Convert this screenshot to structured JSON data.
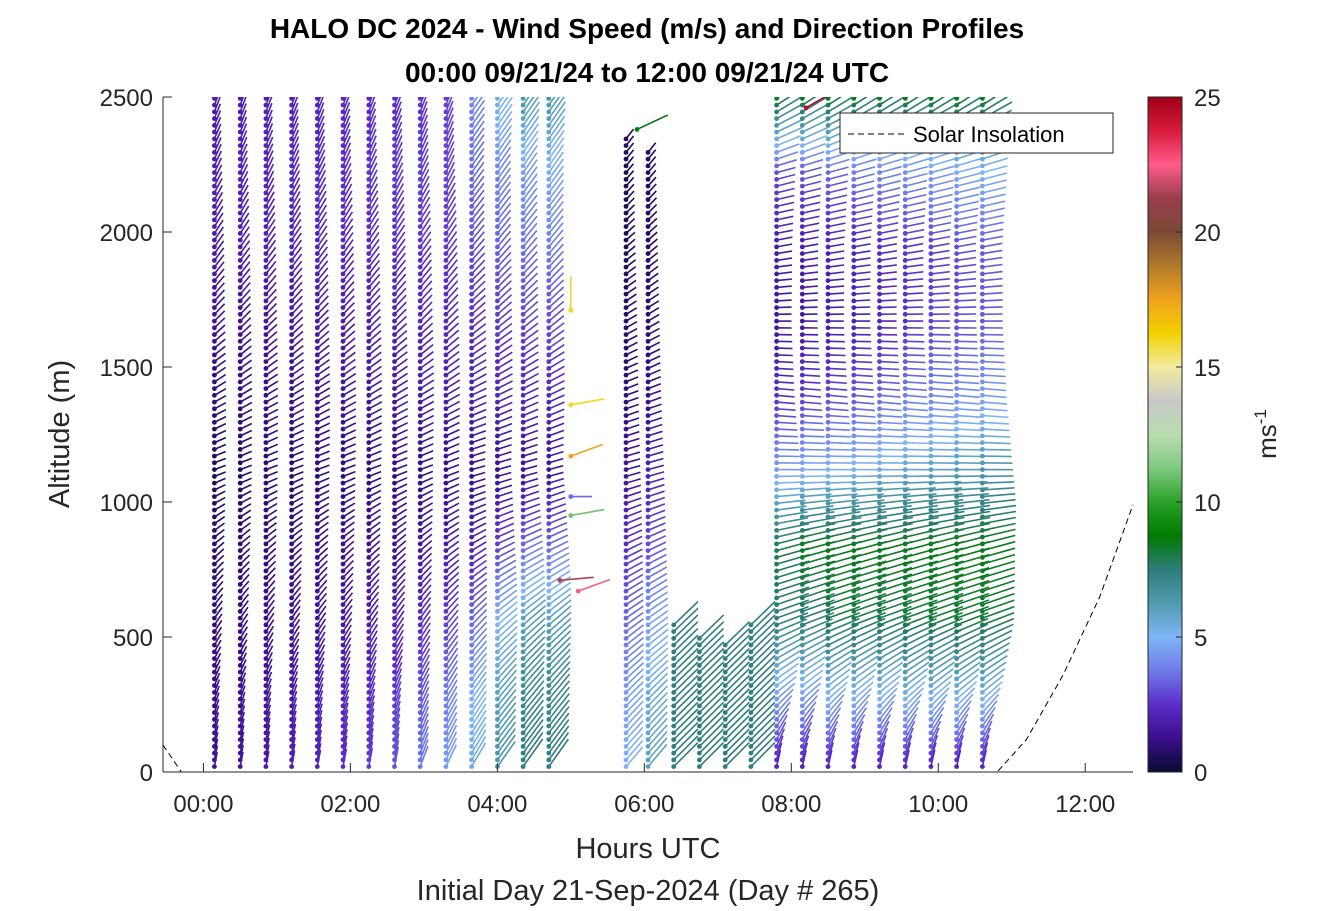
{
  "chart_data": {
    "type": "quiver",
    "title": "HALO DC 2024 - Wind Speed (m/s) and Direction Profiles",
    "subtitle": "00:00 09/21/24 to 12:00 09/21/24  UTC",
    "xlabel": "Hours UTC",
    "xlabel2": "Initial Day 21-Sep-2024 (Day # 265)",
    "ylabel": "Altitude (m)",
    "xlim": [
      -0.55,
      12.65
    ],
    "ylim": [
      0,
      2500
    ],
    "x_ticks": [
      {
        "value": 0,
        "label": "00:00"
      },
      {
        "value": 2,
        "label": "02:00"
      },
      {
        "value": 4,
        "label": "04:00"
      },
      {
        "value": 6,
        "label": "06:00"
      },
      {
        "value": 8,
        "label": "08:00"
      },
      {
        "value": 10,
        "label": "10:00"
      },
      {
        "value": 12,
        "label": "12:00"
      }
    ],
    "y_ticks": [
      0,
      500,
      1000,
      1500,
      2000,
      2500
    ],
    "colorbar": {
      "label_base": "ms",
      "label_sup": "-1",
      "range": [
        0,
        25
      ],
      "ticks": [
        0,
        5,
        10,
        15,
        20,
        25
      ],
      "colors": [
        "#0a0a33",
        "#3b0f8c",
        "#5a2dc8",
        "#6f7be8",
        "#7fb5f5",
        "#4f9bb0",
        "#2e7d7a",
        "#007a00",
        "#2aa12a",
        "#7fc97f",
        "#b9ddb0",
        "#c8c8c8",
        "#f2eb9e",
        "#f2d100",
        "#f0a21e",
        "#b07a2a",
        "#7a4a35",
        "#9a3d4d",
        "#ff5c8a",
        "#d81b3c",
        "#9e0016"
      ]
    },
    "legend": {
      "position": "top-right",
      "entries": [
        {
          "label": "Solar Insolation",
          "style": "dashed",
          "color": "#000000"
        }
      ]
    },
    "series": [
      {
        "name": "Solar Insolation",
        "x": [
          -0.55,
          -0.3,
          0,
          10.8,
          11.2,
          11.7,
          12.2,
          12.65
        ],
        "y": [
          100,
          0,
          0,
          0,
          120,
          360,
          650,
          990
        ]
      }
    ],
    "wind_profiles": [
      {
        "t": 0.15,
        "speed": [
          1.5,
          1.2,
          1.0,
          0.8,
          0.6,
          1.0,
          1.4,
          1.8,
          2.0,
          1.8
        ],
        "dir": [
          190,
          200,
          215,
          230,
          250,
          240,
          225,
          215,
          205,
          200
        ],
        "top": 2500
      },
      {
        "t": 0.5,
        "speed": [
          1.6,
          1.3,
          1.1,
          0.9,
          0.7,
          1.1,
          1.5,
          1.9,
          2.1,
          1.9
        ],
        "dir": [
          190,
          200,
          215,
          230,
          250,
          240,
          225,
          215,
          205,
          200
        ],
        "top": 2500
      },
      {
        "t": 0.85,
        "speed": [
          1.8,
          1.5,
          1.3,
          1.0,
          0.8,
          1.2,
          1.6,
          2.0,
          2.2,
          2.0
        ],
        "dir": [
          190,
          200,
          215,
          230,
          250,
          240,
          225,
          215,
          205,
          200
        ],
        "top": 2500
      },
      {
        "t": 1.2,
        "speed": [
          2.0,
          1.7,
          1.4,
          1.1,
          0.8,
          1.3,
          1.7,
          2.1,
          2.3,
          2.1
        ],
        "dir": [
          190,
          200,
          215,
          230,
          250,
          240,
          225,
          215,
          205,
          200
        ],
        "top": 2500
      },
      {
        "t": 1.55,
        "speed": [
          2.2,
          1.9,
          1.5,
          1.2,
          0.9,
          1.4,
          1.8,
          2.2,
          2.4,
          2.2
        ],
        "dir": [
          190,
          200,
          215,
          230,
          250,
          240,
          225,
          215,
          205,
          200
        ],
        "top": 2500
      },
      {
        "t": 1.9,
        "speed": [
          2.5,
          2.1,
          1.7,
          1.3,
          1.0,
          1.5,
          1.9,
          2.3,
          2.5,
          2.3
        ],
        "dir": [
          190,
          200,
          215,
          230,
          250,
          240,
          225,
          215,
          205,
          200
        ],
        "top": 2500
      },
      {
        "t": 2.25,
        "speed": [
          2.8,
          2.4,
          1.9,
          1.4,
          1.0,
          1.6,
          2.0,
          2.4,
          2.6,
          2.4
        ],
        "dir": [
          190,
          200,
          215,
          230,
          250,
          240,
          225,
          215,
          205,
          200
        ],
        "top": 2500
      },
      {
        "t": 2.6,
        "speed": [
          3.2,
          2.7,
          2.1,
          1.5,
          1.1,
          1.7,
          2.1,
          2.5,
          2.7,
          2.5
        ],
        "dir": [
          190,
          200,
          215,
          230,
          250,
          240,
          225,
          215,
          205,
          200
        ],
        "top": 2500
      },
      {
        "t": 2.95,
        "speed": [
          3.8,
          3.2,
          2.4,
          1.6,
          1.1,
          1.8,
          2.2,
          2.6,
          2.8,
          2.6
        ],
        "dir": [
          200,
          205,
          215,
          230,
          250,
          240,
          225,
          215,
          205,
          200
        ],
        "top": 2500
      },
      {
        "t": 3.3,
        "speed": [
          4.5,
          3.8,
          2.8,
          1.8,
          1.2,
          1.9,
          2.3,
          2.7,
          2.9,
          2.8
        ],
        "dir": [
          205,
          210,
          220,
          235,
          250,
          240,
          225,
          215,
          205,
          200
        ],
        "top": 2500
      },
      {
        "t": 3.65,
        "speed": [
          5.5,
          4.8,
          3.5,
          2.1,
          1.2,
          2.0,
          2.5,
          3.0,
          3.5,
          4.0
        ],
        "dir": [
          210,
          215,
          225,
          240,
          255,
          245,
          230,
          220,
          215,
          215
        ],
        "top": 2500
      },
      {
        "t": 4.0,
        "speed": [
          6.5,
          6.0,
          5.0,
          2.8,
          1.3,
          2.1,
          2.7,
          3.3,
          4.0,
          5.5
        ],
        "dir": [
          215,
          220,
          230,
          245,
          255,
          245,
          230,
          220,
          215,
          215
        ],
        "top": 2500
      },
      {
        "t": 4.35,
        "speed": [
          7.5,
          7.0,
          6.0,
          3.5,
          1.4,
          2.2,
          2.9,
          3.6,
          4.5,
          6.5
        ],
        "dir": [
          215,
          220,
          230,
          245,
          255,
          245,
          230,
          220,
          215,
          215
        ],
        "top": 2500
      },
      {
        "t": 4.7,
        "speed": [
          7.5,
          7.0,
          6.0,
          3.5,
          1.5,
          2.3,
          3.0,
          3.8,
          4.8,
          6.5
        ],
        "dir": [
          215,
          220,
          230,
          245,
          255,
          245,
          230,
          220,
          215,
          215
        ],
        "top": 2500
      },
      {
        "t": 5.75,
        "speed": [
          5.0,
          4.5,
          3.5,
          2.5,
          1.5,
          1.0,
          0.8,
          0.6,
          0.5,
          1.0
        ],
        "dir": [
          220,
          225,
          235,
          245,
          255,
          250,
          240,
          230,
          220,
          215
        ],
        "top": 2350
      },
      {
        "t": 6.05,
        "speed": [
          6.0,
          5.5,
          4.5,
          3.0,
          2.0,
          1.2,
          0.9,
          0.7,
          0.6,
          1.0
        ],
        "dir": [
          220,
          225,
          235,
          245,
          255,
          250,
          240,
          230,
          220,
          215
        ],
        "top": 2300
      },
      {
        "t": 6.4,
        "speed": [
          7.5,
          7.0
        ],
        "dir": [
          225,
          230
        ],
        "top": 550
      },
      {
        "t": 6.75,
        "speed": [
          7.5,
          7.0
        ],
        "dir": [
          225,
          230
        ],
        "top": 500
      },
      {
        "t": 7.1,
        "speed": [
          7.5,
          7.0
        ],
        "dir": [
          225,
          230
        ],
        "top": 480
      },
      {
        "t": 7.45,
        "speed": [
          7.5,
          7.0
        ],
        "dir": [
          225,
          230
        ],
        "top": 560
      },
      {
        "t": 7.8,
        "speed": [
          2.0,
          4.5,
          7.5,
          8.0,
          4.5,
          2.5,
          1.5,
          1.8,
          3.0,
          8.5
        ],
        "dir": [
          190,
          230,
          250,
          255,
          270,
          275,
          270,
          260,
          255,
          235
        ],
        "top": 2500
      },
      {
        "t": 8.15,
        "speed": [
          2.0,
          4.5,
          7.5,
          8.5,
          4.8,
          2.8,
          1.6,
          1.9,
          3.2,
          8.5
        ],
        "dir": [
          190,
          230,
          250,
          255,
          270,
          275,
          270,
          260,
          255,
          235
        ],
        "top": 2500
      },
      {
        "t": 8.5,
        "speed": [
          2.0,
          5.0,
          8.0,
          8.5,
          5.0,
          3.0,
          1.8,
          2.0,
          3.5,
          8.5
        ],
        "dir": [
          190,
          230,
          250,
          255,
          270,
          275,
          270,
          260,
          255,
          235
        ],
        "top": 2500
      },
      {
        "t": 8.85,
        "speed": [
          2.0,
          5.0,
          8.0,
          8.5,
          5.2,
          3.2,
          2.0,
          2.2,
          3.8,
          8.5
        ],
        "dir": [
          190,
          230,
          250,
          255,
          270,
          275,
          270,
          260,
          255,
          235
        ],
        "top": 2500
      },
      {
        "t": 9.2,
        "speed": [
          2.0,
          5.0,
          8.0,
          8.5,
          5.5,
          3.5,
          2.2,
          2.4,
          4.0,
          8.5
        ],
        "dir": [
          190,
          230,
          250,
          255,
          270,
          275,
          270,
          260,
          255,
          235
        ],
        "top": 2500
      },
      {
        "t": 9.55,
        "speed": [
          2.0,
          5.2,
          8.2,
          8.5,
          5.8,
          3.8,
          2.5,
          2.6,
          4.2,
          8.5
        ],
        "dir": [
          190,
          230,
          250,
          255,
          270,
          275,
          270,
          260,
          255,
          235
        ],
        "top": 2500
      },
      {
        "t": 9.9,
        "speed": [
          2.0,
          5.2,
          8.2,
          8.5,
          6.0,
          4.0,
          2.8,
          2.8,
          4.5,
          8.5
        ],
        "dir": [
          190,
          230,
          250,
          255,
          270,
          275,
          270,
          260,
          255,
          235
        ],
        "top": 2500
      },
      {
        "t": 10.25,
        "speed": [
          2.0,
          5.2,
          8.2,
          8.5,
          6.2,
          4.2,
          3.0,
          3.0,
          4.8,
          8.5
        ],
        "dir": [
          190,
          230,
          250,
          255,
          270,
          275,
          270,
          260,
          255,
          235
        ],
        "top": 2500
      },
      {
        "t": 10.6,
        "speed": [
          2.0,
          5.2,
          8.2,
          8.5,
          6.5,
          4.5,
          3.2,
          3.2,
          5.0,
          8.5
        ],
        "dir": [
          190,
          230,
          250,
          255,
          270,
          275,
          270,
          260,
          255,
          235
        ],
        "top": 2500
      }
    ],
    "isolated_points": [
      {
        "t": 5.0,
        "alt": 1710,
        "speed": 16.0,
        "dir": 180
      },
      {
        "t": 5.0,
        "alt": 1360,
        "speed": 16.0,
        "dir": 260
      },
      {
        "t": 5.0,
        "alt": 1170,
        "speed": 17.5,
        "dir": 250
      },
      {
        "t": 5.0,
        "alt": 1020,
        "speed": 3.5,
        "dir": 270
      },
      {
        "t": 5.0,
        "alt": 950,
        "speed": 11.0,
        "dir": 260
      },
      {
        "t": 4.85,
        "alt": 710,
        "speed": 21.5,
        "dir": 265
      },
      {
        "t": 5.1,
        "alt": 670,
        "speed": 22.5,
        "dir": 250
      },
      {
        "t": 8.2,
        "alt": 2460,
        "speed": 24.5,
        "dir": 240
      },
      {
        "t": 5.9,
        "alt": 2380,
        "speed": 8.5,
        "dir": 245
      }
    ]
  }
}
